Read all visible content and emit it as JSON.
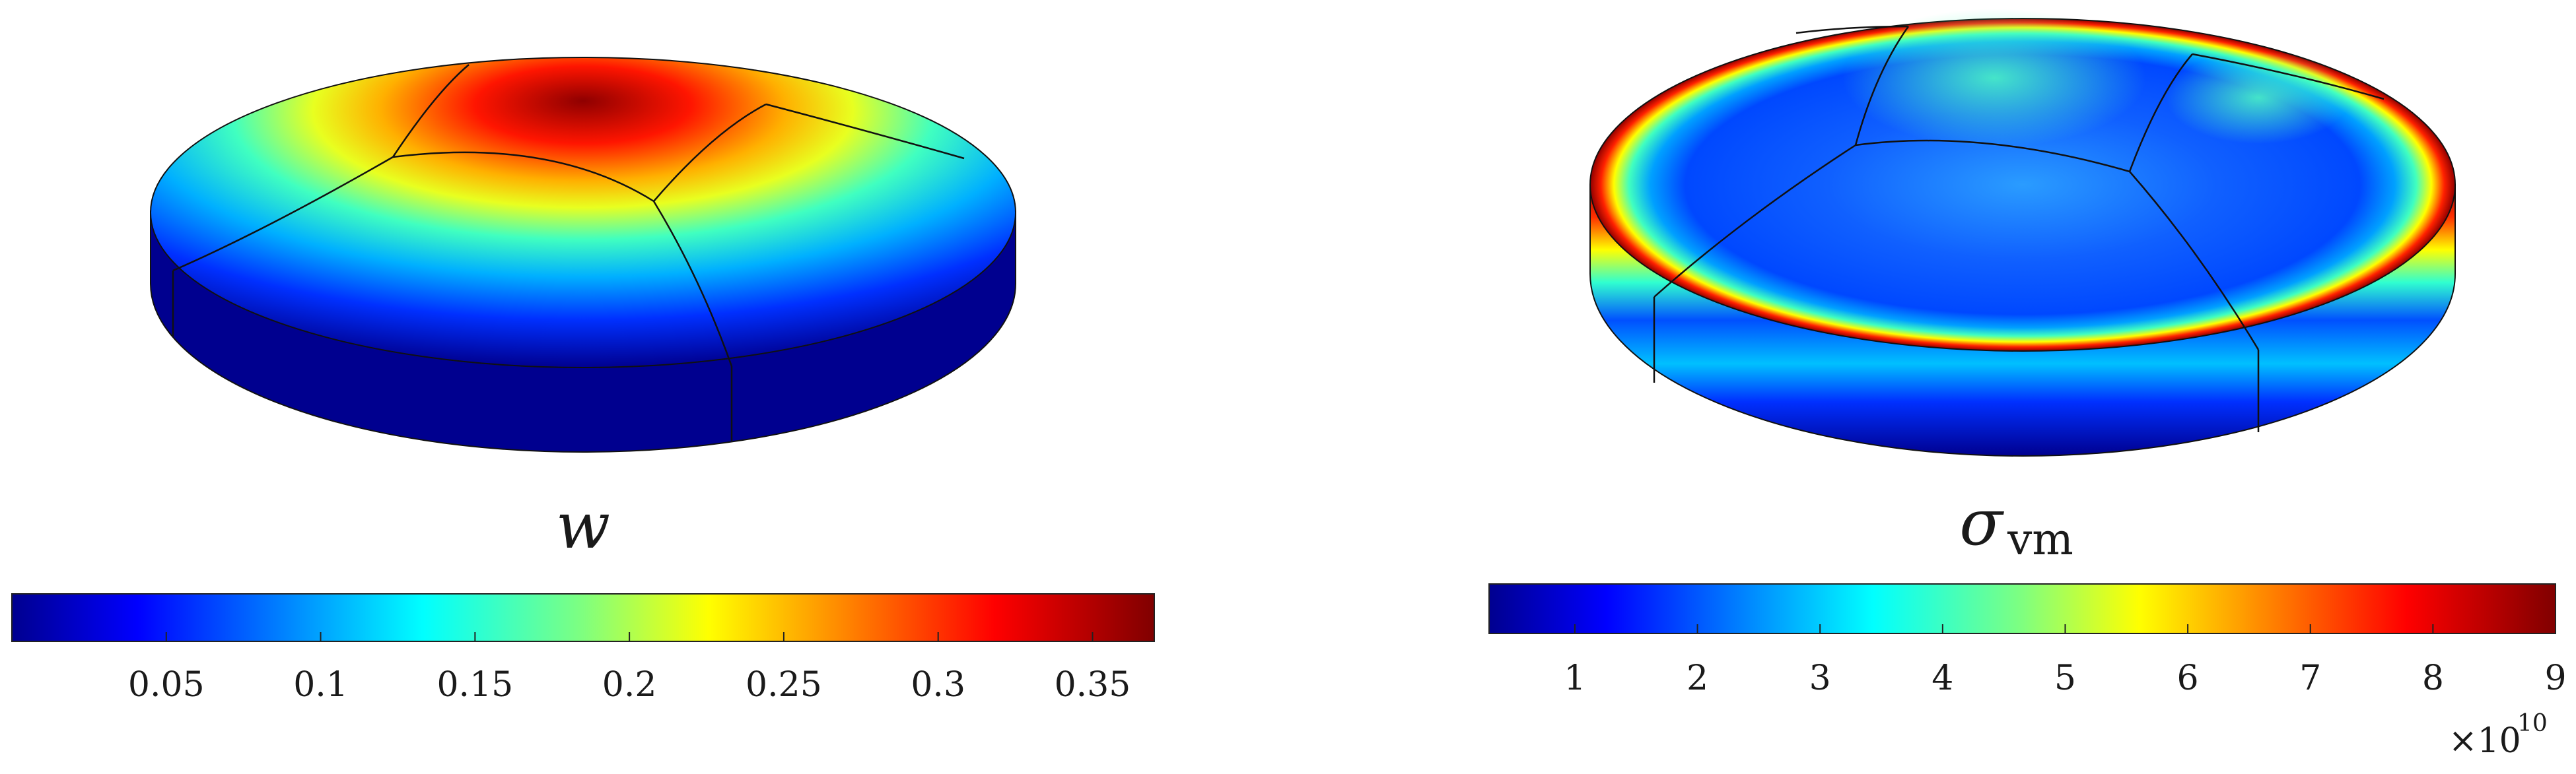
{
  "panels": [
    {
      "symbol": "w",
      "subscript": "",
      "colorbar": {
        "range": [
          0,
          0.37
        ],
        "ticks": [
          "0.05",
          "0.1",
          "0.15",
          "0.2",
          "0.25",
          "0.3",
          "0.35"
        ],
        "multiplier_base": "",
        "multiplier_exp": ""
      }
    },
    {
      "symbol": "σ",
      "subscript": "vm",
      "colorbar": {
        "range": [
          0.3,
          9
        ],
        "ticks": [
          "1",
          "2",
          "3",
          "4",
          "5",
          "6",
          "7",
          "8",
          "9"
        ],
        "multiplier_base": "×10",
        "multiplier_exp": "10"
      }
    }
  ],
  "colormap": "jet"
}
